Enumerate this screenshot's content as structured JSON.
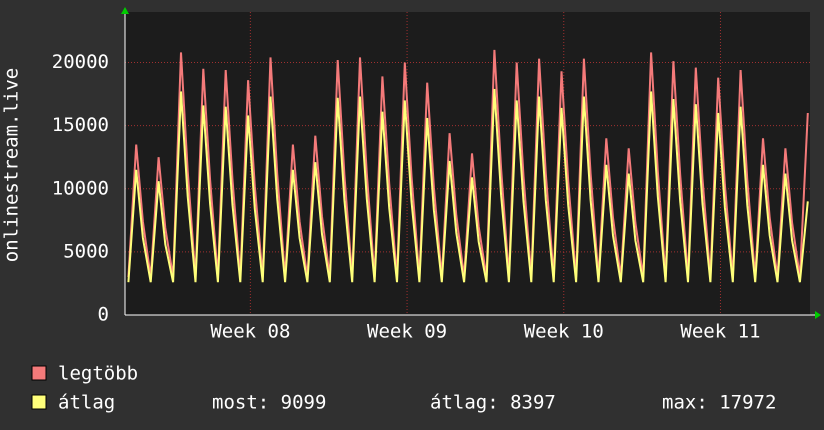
{
  "chart_data": {
    "type": "line",
    "y_label": "onlinestream.live",
    "x": [
      0.15,
      0.5,
      0.8,
      1.15,
      1.5,
      1.8,
      2.15,
      2.5,
      2.8,
      3.15,
      3.5,
      3.8,
      4.15,
      4.5,
      4.8,
      5.15,
      5.5,
      5.8,
      6.15,
      6.5,
      6.8,
      7.15,
      7.5,
      7.8,
      8.15,
      8.5,
      8.8,
      9.15,
      9.5,
      9.8,
      10.15,
      10.5,
      10.8,
      11.15,
      11.5,
      11.8,
      12.15,
      12.5,
      12.8,
      13.15,
      13.5,
      13.8,
      14.15,
      14.5,
      14.8,
      15.15,
      15.5,
      15.8,
      16.15,
      16.5,
      16.8,
      17.15,
      17.5,
      17.8,
      18.15,
      18.5,
      18.8,
      19.15,
      19.5,
      19.8,
      20.15,
      20.5,
      20.8,
      21.15,
      21.5,
      21.8,
      22.15,
      22.5,
      22.8,
      23.15,
      23.5,
      23.8,
      24.15,
      24.5,
      24.8,
      25.15,
      25.5,
      25.8,
      26.15,
      26.5,
      26.8,
      27.15,
      27.5,
      27.8,
      28.15,
      28.5,
      28.8,
      29.15,
      29.5,
      29.8,
      30.15,
      30.5
    ],
    "series": [
      {
        "name": "legtöbb",
        "color": "#f47a7a",
        "values": [
          3000,
          13500,
          7400,
          3000,
          12500,
          6900,
          3000,
          20800,
          11400,
          3000,
          19500,
          10700,
          3000,
          19400,
          10700,
          3000,
          18600,
          10200,
          3000,
          20400,
          11200,
          3000,
          13500,
          7400,
          3000,
          14200,
          7800,
          3000,
          20200,
          11100,
          3000,
          20400,
          11200,
          3000,
          18900,
          10400,
          3000,
          20000,
          11000,
          3000,
          18400,
          10100,
          3000,
          14400,
          7900,
          3000,
          12800,
          7000,
          3000,
          21000,
          11600,
          3000,
          20000,
          11000,
          3000,
          20300,
          11200,
          3000,
          19300,
          10600,
          3000,
          20300,
          11200,
          3000,
          14000,
          7700,
          3000,
          13200,
          7300,
          3000,
          20800,
          11400,
          3000,
          20100,
          11100,
          3000,
          19600,
          10800,
          3000,
          18800,
          10300,
          3000,
          19400,
          10700,
          3000,
          14000,
          7700,
          3000,
          13200,
          7300,
          3000,
          16000
        ]
      },
      {
        "name": "átlag",
        "color": "#ffff7a",
        "values": [
          2600,
          11500,
          6100,
          2600,
          10600,
          5600,
          2600,
          17700,
          9400,
          2600,
          16600,
          8800,
          2600,
          16500,
          8700,
          2600,
          15800,
          8400,
          2600,
          17300,
          9200,
          2600,
          11500,
          6100,
          2600,
          12100,
          6400,
          2600,
          17200,
          9100,
          2600,
          17300,
          9200,
          2600,
          16100,
          8500,
          2600,
          17000,
          9000,
          2600,
          15600,
          8300,
          2600,
          12200,
          6500,
          2600,
          10900,
          5800,
          2600,
          17900,
          9500,
          2600,
          17000,
          9000,
          2600,
          17300,
          9100,
          2600,
          16400,
          8700,
          2600,
          17300,
          9100,
          2600,
          11900,
          6300,
          2600,
          11200,
          5900,
          2600,
          17700,
          9400,
          2600,
          17100,
          9000,
          2600,
          16700,
          8800,
          2600,
          16000,
          8500,
          2600,
          16500,
          8700,
          2600,
          11900,
          6300,
          2600,
          11200,
          5900,
          2600,
          9000
        ]
      }
    ],
    "legend_stats": [
      "most: 9099",
      "átlag: 8397",
      "max: 17972"
    ],
    "xlim": [
      0,
      30.6
    ],
    "xticks": [
      {
        "value": 5.6,
        "label": "Week 08"
      },
      {
        "value": 12.6,
        "label": "Week 09"
      },
      {
        "value": 19.6,
        "label": "Week 10"
      },
      {
        "value": 26.6,
        "label": "Week 11"
      }
    ],
    "ylim": [
      0,
      24000
    ],
    "yticks": [
      0,
      5000,
      10000,
      15000,
      20000
    ],
    "grid": true
  }
}
